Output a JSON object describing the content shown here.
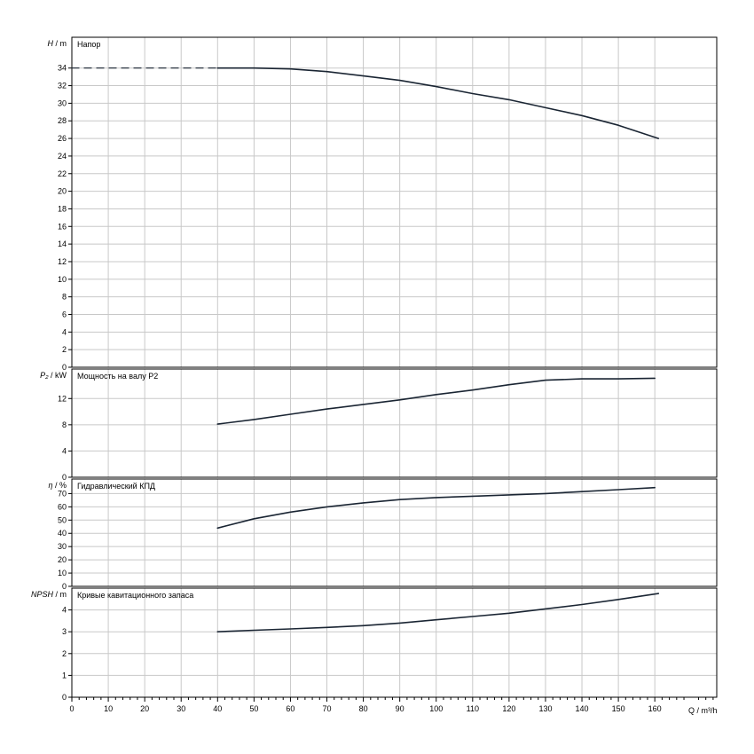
{
  "chart_data": [
    {
      "type": "line",
      "title": "Напор",
      "ylabel_var": "H",
      "ylabel_unit": " / m",
      "ylim": [
        0,
        37.5
      ],
      "yticks": [
        0,
        2,
        4,
        6,
        8,
        10,
        12,
        14,
        16,
        18,
        20,
        22,
        24,
        26,
        28,
        30,
        32,
        34
      ],
      "ytick_labels": [
        "0",
        "2",
        "4",
        "6",
        "8",
        "10",
        "12",
        "14",
        "16",
        "18",
        "20",
        "22",
        "24",
        "26",
        "28",
        "30",
        "32",
        "34"
      ],
      "series": [
        {
          "style": "dashed",
          "x": [
            0,
            40
          ],
          "y": [
            34,
            34
          ]
        },
        {
          "style": "solid",
          "x": [
            40,
            50,
            60,
            70,
            80,
            90,
            100,
            110,
            120,
            130,
            140,
            150,
            161
          ],
          "y": [
            34,
            34,
            33.9,
            33.6,
            33.1,
            32.6,
            31.9,
            31.1,
            30.4,
            29.5,
            28.6,
            27.5,
            26
          ]
        }
      ]
    },
    {
      "type": "line",
      "title": "Мощность на валу P2",
      "ylabel_var": "P₂",
      "ylabel_unit": " / kW",
      "ylim": [
        0,
        16.5
      ],
      "yticks": [
        0,
        4,
        8,
        12
      ],
      "ytick_labels": [
        "0",
        "4",
        "8",
        "12"
      ],
      "series": [
        {
          "style": "solid",
          "x": [
            40,
            50,
            60,
            70,
            80,
            90,
            100,
            110,
            120,
            130,
            140,
            150,
            160
          ],
          "y": [
            8.1,
            8.8,
            9.6,
            10.4,
            11.1,
            11.8,
            12.6,
            13.3,
            14.1,
            14.8,
            15.0,
            15.0,
            15.1
          ]
        }
      ]
    },
    {
      "type": "line",
      "title": "Гидравлический КПД",
      "ylabel_var": "η",
      "ylabel_unit": " / %",
      "ylim": [
        0,
        81
      ],
      "yticks": [
        0,
        10,
        20,
        30,
        40,
        50,
        60,
        70
      ],
      "ytick_labels": [
        "0",
        "10",
        "20",
        "30",
        "40",
        "50",
        "60",
        "70"
      ],
      "series": [
        {
          "style": "solid",
          "x": [
            40,
            50,
            60,
            70,
            80,
            90,
            100,
            110,
            120,
            130,
            140,
            150,
            160
          ],
          "y": [
            44,
            51,
            56,
            60,
            63,
            65.5,
            67,
            68,
            69,
            70,
            71.5,
            73,
            74.5
          ]
        }
      ]
    },
    {
      "type": "line",
      "title": "Кривые кавитационного запаса",
      "ylabel_var": "NPSH",
      "ylabel_unit": " / m",
      "ylim": [
        0,
        5
      ],
      "yticks": [
        0,
        1,
        2,
        3,
        4
      ],
      "ytick_labels": [
        "0",
        "1",
        "2",
        "3",
        "4"
      ],
      "series": [
        {
          "style": "solid",
          "x": [
            40,
            50,
            60,
            70,
            80,
            90,
            100,
            110,
            120,
            130,
            140,
            150,
            161
          ],
          "y": [
            3.0,
            3.07,
            3.13,
            3.2,
            3.28,
            3.4,
            3.55,
            3.7,
            3.85,
            4.05,
            4.25,
            4.48,
            4.75
          ]
        }
      ]
    }
  ],
  "x_axis": {
    "label": "Q / m³/h",
    "xlim": [
      0,
      177
    ],
    "ticks": [
      0,
      10,
      20,
      30,
      40,
      50,
      60,
      70,
      80,
      90,
      100,
      110,
      120,
      130,
      140,
      150,
      160
    ],
    "tick_labels": [
      "0",
      "10",
      "20",
      "30",
      "40",
      "50",
      "60",
      "70",
      "80",
      "90",
      "100",
      "110",
      "120",
      "130",
      "140",
      "150",
      "160"
    ]
  },
  "grid": true,
  "colors": {
    "curve": "#1a2533",
    "grid": "#c8c8c8",
    "frame": "#000000"
  }
}
